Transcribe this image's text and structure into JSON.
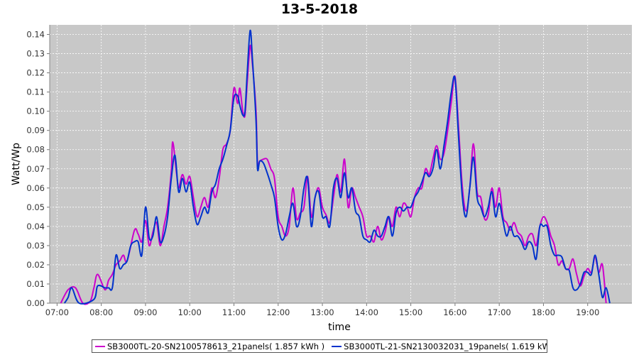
{
  "chart_data": {
    "type": "line",
    "title": "13-5-2018",
    "xlabel": "time",
    "ylabel": "Watt/Wp",
    "x_range": [
      "06:50",
      "20:00"
    ],
    "ylim": [
      0,
      0.145
    ],
    "x_ticks": [
      "07:00",
      "08:00",
      "09:00",
      "10:00",
      "11:00",
      "12:00",
      "13:00",
      "14:00",
      "15:00",
      "16:00",
      "17:00",
      "18:00",
      "19:00"
    ],
    "y_ticks": [
      "0.00",
      "0.01",
      "0.02",
      "0.03",
      "0.04",
      "0.05",
      "0.06",
      "0.07",
      "0.08",
      "0.09",
      "0.10",
      "0.11",
      "0.12",
      "0.13",
      "0.14"
    ],
    "grid": true,
    "legend_position": "bottom",
    "series": [
      {
        "name": "SB3000TL-20-SN2100578613_21panels( 1.857 kWh )",
        "color": "#cc00cc",
        "points": [
          [
            "07:05",
            0.0
          ],
          [
            "07:15",
            0.007
          ],
          [
            "07:25",
            0.008
          ],
          [
            "07:35",
            0.0
          ],
          [
            "07:45",
            0.001
          ],
          [
            "07:50",
            0.008
          ],
          [
            "07:55",
            0.015
          ],
          [
            "08:05",
            0.007
          ],
          [
            "08:10",
            0.012
          ],
          [
            "08:15",
            0.015
          ],
          [
            "08:20",
            0.02
          ],
          [
            "08:25",
            0.022
          ],
          [
            "08:30",
            0.025
          ],
          [
            "08:35",
            0.022
          ],
          [
            "08:45",
            0.038
          ],
          [
            "08:50",
            0.036
          ],
          [
            "08:55",
            0.032
          ],
          [
            "09:00",
            0.043
          ],
          [
            "09:05",
            0.03
          ],
          [
            "09:10",
            0.037
          ],
          [
            "09:15",
            0.042
          ],
          [
            "09:20",
            0.03
          ],
          [
            "09:25",
            0.04
          ],
          [
            "09:30",
            0.05
          ],
          [
            "09:35",
            0.069
          ],
          [
            "09:37",
            0.084
          ],
          [
            "09:42",
            0.068
          ],
          [
            "09:45",
            0.06
          ],
          [
            "09:50",
            0.067
          ],
          [
            "09:55",
            0.062
          ],
          [
            "10:00",
            0.066
          ],
          [
            "10:05",
            0.055
          ],
          [
            "10:10",
            0.045
          ],
          [
            "10:15",
            0.05
          ],
          [
            "10:20",
            0.055
          ],
          [
            "10:25",
            0.05
          ],
          [
            "10:30",
            0.06
          ],
          [
            "10:35",
            0.055
          ],
          [
            "10:40",
            0.065
          ],
          [
            "10:45",
            0.08
          ],
          [
            "10:50",
            0.083
          ],
          [
            "10:55",
            0.09
          ],
          [
            "11:00",
            0.112
          ],
          [
            "11:05",
            0.104
          ],
          [
            "11:08",
            0.112
          ],
          [
            "11:12",
            0.1
          ],
          [
            "11:15",
            0.098
          ],
          [
            "11:18",
            0.115
          ],
          [
            "11:22",
            0.134
          ],
          [
            "11:25",
            0.125
          ],
          [
            "11:30",
            0.1
          ],
          [
            "11:32",
            0.073
          ],
          [
            "11:35",
            0.074
          ],
          [
            "11:40",
            0.075
          ],
          [
            "11:45",
            0.075
          ],
          [
            "11:50",
            0.07
          ],
          [
            "11:55",
            0.065
          ],
          [
            "12:00",
            0.045
          ],
          [
            "12:05",
            0.04
          ],
          [
            "12:10",
            0.035
          ],
          [
            "12:15",
            0.04
          ],
          [
            "12:20",
            0.06
          ],
          [
            "12:25",
            0.044
          ],
          [
            "12:30",
            0.047
          ],
          [
            "12:35",
            0.05
          ],
          [
            "12:40",
            0.066
          ],
          [
            "12:45",
            0.045
          ],
          [
            "12:50",
            0.055
          ],
          [
            "12:55",
            0.06
          ],
          [
            "13:00",
            0.05
          ],
          [
            "13:05",
            0.046
          ],
          [
            "13:10",
            0.042
          ],
          [
            "13:15",
            0.055
          ],
          [
            "13:20",
            0.067
          ],
          [
            "13:25",
            0.058
          ],
          [
            "13:30",
            0.075
          ],
          [
            "13:35",
            0.05
          ],
          [
            "13:40",
            0.06
          ],
          [
            "13:45",
            0.055
          ],
          [
            "13:50",
            0.05
          ],
          [
            "13:55",
            0.045
          ],
          [
            "14:00",
            0.035
          ],
          [
            "14:05",
            0.035
          ],
          [
            "14:10",
            0.032
          ],
          [
            "14:15",
            0.04
          ],
          [
            "14:20",
            0.033
          ],
          [
            "14:25",
            0.037
          ],
          [
            "14:30",
            0.045
          ],
          [
            "14:35",
            0.04
          ],
          [
            "14:40",
            0.05
          ],
          [
            "14:45",
            0.045
          ],
          [
            "14:50",
            0.052
          ],
          [
            "14:55",
            0.05
          ],
          [
            "15:00",
            0.045
          ],
          [
            "15:05",
            0.055
          ],
          [
            "15:10",
            0.06
          ],
          [
            "15:15",
            0.06
          ],
          [
            "15:20",
            0.07
          ],
          [
            "15:25",
            0.067
          ],
          [
            "15:30",
            0.075
          ],
          [
            "15:35",
            0.082
          ],
          [
            "15:40",
            0.075
          ],
          [
            "15:45",
            0.078
          ],
          [
            "15:50",
            0.09
          ],
          [
            "15:55",
            0.105
          ],
          [
            "16:00",
            0.118
          ],
          [
            "16:05",
            0.09
          ],
          [
            "16:10",
            0.06
          ],
          [
            "16:15",
            0.048
          ],
          [
            "16:20",
            0.06
          ],
          [
            "16:25",
            0.083
          ],
          [
            "16:30",
            0.058
          ],
          [
            "16:35",
            0.055
          ],
          [
            "16:40",
            0.044
          ],
          [
            "16:45",
            0.046
          ],
          [
            "16:50",
            0.06
          ],
          [
            "16:55",
            0.05
          ],
          [
            "17:00",
            0.06
          ],
          [
            "17:05",
            0.045
          ],
          [
            "17:10",
            0.042
          ],
          [
            "17:15",
            0.038
          ],
          [
            "17:20",
            0.042
          ],
          [
            "17:25",
            0.037
          ],
          [
            "17:30",
            0.035
          ],
          [
            "17:35",
            0.03
          ],
          [
            "17:40",
            0.035
          ],
          [
            "17:45",
            0.036
          ],
          [
            "17:50",
            0.03
          ],
          [
            "17:55",
            0.04
          ],
          [
            "18:00",
            0.045
          ],
          [
            "18:05",
            0.042
          ],
          [
            "18:10",
            0.035
          ],
          [
            "18:15",
            0.03
          ],
          [
            "18:20",
            0.02
          ],
          [
            "18:25",
            0.022
          ],
          [
            "18:30",
            0.018
          ],
          [
            "18:35",
            0.018
          ],
          [
            "18:40",
            0.023
          ],
          [
            "18:45",
            0.015
          ],
          [
            "18:50",
            0.009
          ],
          [
            "18:55",
            0.014
          ],
          [
            "19:00",
            0.018
          ],
          [
            "19:05",
            0.016
          ],
          [
            "19:10",
            0.024
          ],
          [
            "19:15",
            0.016
          ],
          [
            "19:20",
            0.02
          ],
          [
            "19:25",
            0.0
          ]
        ]
      },
      {
        "name": "SB3000TL-21-SN2130032031_19panels( 1.619 kWh )",
        "color": "#0033cc",
        "points": [
          [
            "07:10",
            0.0
          ],
          [
            "07:15",
            0.003
          ],
          [
            "07:20",
            0.008
          ],
          [
            "07:30",
            0.0
          ],
          [
            "07:50",
            0.002
          ],
          [
            "07:55",
            0.009
          ],
          [
            "08:05",
            0.008
          ],
          [
            "08:10",
            0.008
          ],
          [
            "08:15",
            0.008
          ],
          [
            "08:20",
            0.025
          ],
          [
            "08:25",
            0.018
          ],
          [
            "08:30",
            0.02
          ],
          [
            "08:35",
            0.022
          ],
          [
            "08:40",
            0.03
          ],
          [
            "08:45",
            0.032
          ],
          [
            "08:50",
            0.032
          ],
          [
            "08:55",
            0.025
          ],
          [
            "09:00",
            0.05
          ],
          [
            "09:05",
            0.034
          ],
          [
            "09:10",
            0.035
          ],
          [
            "09:15",
            0.045
          ],
          [
            "09:20",
            0.032
          ],
          [
            "09:25",
            0.035
          ],
          [
            "09:30",
            0.045
          ],
          [
            "09:35",
            0.065
          ],
          [
            "09:40",
            0.077
          ],
          [
            "09:45",
            0.058
          ],
          [
            "09:50",
            0.065
          ],
          [
            "09:55",
            0.058
          ],
          [
            "10:00",
            0.063
          ],
          [
            "10:05",
            0.05
          ],
          [
            "10:10",
            0.041
          ],
          [
            "10:15",
            0.045
          ],
          [
            "10:20",
            0.05
          ],
          [
            "10:25",
            0.047
          ],
          [
            "10:30",
            0.058
          ],
          [
            "10:35",
            0.062
          ],
          [
            "10:40",
            0.07
          ],
          [
            "10:45",
            0.075
          ],
          [
            "10:50",
            0.082
          ],
          [
            "10:55",
            0.09
          ],
          [
            "11:00",
            0.107
          ],
          [
            "11:05",
            0.108
          ],
          [
            "11:08",
            0.103
          ],
          [
            "11:12",
            0.098
          ],
          [
            "11:15",
            0.1
          ],
          [
            "11:18",
            0.12
          ],
          [
            "11:22",
            0.142
          ],
          [
            "11:25",
            0.128
          ],
          [
            "11:30",
            0.095
          ],
          [
            "11:32",
            0.07
          ],
          [
            "11:35",
            0.074
          ],
          [
            "11:40",
            0.073
          ],
          [
            "11:45",
            0.068
          ],
          [
            "11:50",
            0.062
          ],
          [
            "11:55",
            0.055
          ],
          [
            "12:00",
            0.04
          ],
          [
            "12:05",
            0.033
          ],
          [
            "12:10",
            0.036
          ],
          [
            "12:15",
            0.045
          ],
          [
            "12:20",
            0.052
          ],
          [
            "12:25",
            0.04
          ],
          [
            "12:30",
            0.045
          ],
          [
            "12:35",
            0.06
          ],
          [
            "12:40",
            0.065
          ],
          [
            "12:45",
            0.04
          ],
          [
            "12:50",
            0.055
          ],
          [
            "12:55",
            0.058
          ],
          [
            "13:00",
            0.045
          ],
          [
            "13:05",
            0.045
          ],
          [
            "13:10",
            0.04
          ],
          [
            "13:15",
            0.06
          ],
          [
            "13:20",
            0.065
          ],
          [
            "13:25",
            0.055
          ],
          [
            "13:30",
            0.068
          ],
          [
            "13:35",
            0.055
          ],
          [
            "13:40",
            0.06
          ],
          [
            "13:45",
            0.048
          ],
          [
            "13:50",
            0.045
          ],
          [
            "13:55",
            0.035
          ],
          [
            "14:00",
            0.033
          ],
          [
            "14:05",
            0.032
          ],
          [
            "14:10",
            0.038
          ],
          [
            "14:15",
            0.035
          ],
          [
            "14:20",
            0.035
          ],
          [
            "14:25",
            0.04
          ],
          [
            "14:30",
            0.045
          ],
          [
            "14:35",
            0.035
          ],
          [
            "14:40",
            0.047
          ],
          [
            "14:45",
            0.05
          ],
          [
            "14:50",
            0.048
          ],
          [
            "14:55",
            0.05
          ],
          [
            "15:00",
            0.05
          ],
          [
            "15:05",
            0.055
          ],
          [
            "15:10",
            0.058
          ],
          [
            "15:15",
            0.063
          ],
          [
            "15:20",
            0.068
          ],
          [
            "15:25",
            0.066
          ],
          [
            "15:30",
            0.07
          ],
          [
            "15:35",
            0.08
          ],
          [
            "15:40",
            0.07
          ],
          [
            "15:45",
            0.082
          ],
          [
            "15:50",
            0.095
          ],
          [
            "15:55",
            0.11
          ],
          [
            "16:00",
            0.117
          ],
          [
            "16:05",
            0.085
          ],
          [
            "16:10",
            0.055
          ],
          [
            "16:15",
            0.045
          ],
          [
            "16:20",
            0.06
          ],
          [
            "16:25",
            0.076
          ],
          [
            "16:30",
            0.055
          ],
          [
            "16:35",
            0.05
          ],
          [
            "16:40",
            0.045
          ],
          [
            "16:45",
            0.05
          ],
          [
            "16:50",
            0.058
          ],
          [
            "16:55",
            0.045
          ],
          [
            "17:00",
            0.052
          ],
          [
            "17:05",
            0.043
          ],
          [
            "17:10",
            0.035
          ],
          [
            "17:15",
            0.04
          ],
          [
            "17:20",
            0.035
          ],
          [
            "17:25",
            0.035
          ],
          [
            "17:30",
            0.032
          ],
          [
            "17:35",
            0.028
          ],
          [
            "17:40",
            0.032
          ],
          [
            "17:45",
            0.03
          ],
          [
            "17:50",
            0.023
          ],
          [
            "17:55",
            0.04
          ],
          [
            "18:00",
            0.04
          ],
          [
            "18:05",
            0.04
          ],
          [
            "18:10",
            0.03
          ],
          [
            "18:15",
            0.025
          ],
          [
            "18:20",
            0.025
          ],
          [
            "18:25",
            0.024
          ],
          [
            "18:30",
            0.018
          ],
          [
            "18:35",
            0.017
          ],
          [
            "18:40",
            0.008
          ],
          [
            "18:45",
            0.007
          ],
          [
            "18:50",
            0.01
          ],
          [
            "18:55",
            0.016
          ],
          [
            "19:00",
            0.016
          ],
          [
            "19:05",
            0.015
          ],
          [
            "19:10",
            0.025
          ],
          [
            "19:15",
            0.015
          ],
          [
            "19:20",
            0.003
          ],
          [
            "19:25",
            0.008
          ],
          [
            "19:30",
            0.0
          ]
        ]
      }
    ]
  }
}
